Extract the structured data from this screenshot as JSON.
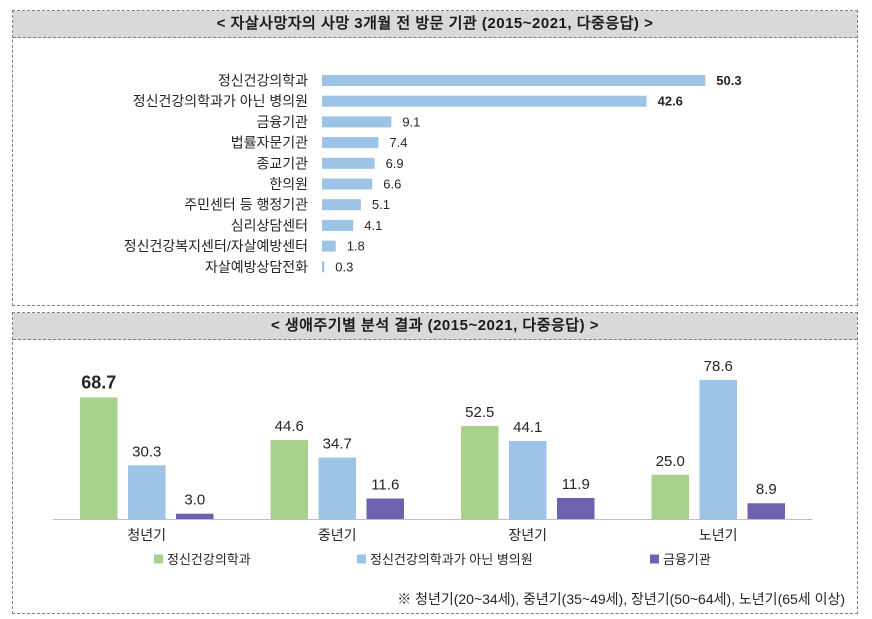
{
  "chart_data": [
    {
      "type": "bar",
      "orientation": "horizontal",
      "title": "< 자살사망자의 사망 3개월 전 방문 기관 (2015~2021, 다중응답) >",
      "categories": [
        "정신건강의학과",
        "정신건강의학과가 아닌 병의원",
        "금융기관",
        "법률자문기관",
        "종교기관",
        "한의원",
        "주민센터 등 행정기관",
        "심리상담센터",
        "정신건강복지센터/자살예방센터",
        "자살예방상담전화"
      ],
      "values": [
        50.3,
        42.6,
        9.1,
        7.4,
        6.9,
        6.6,
        5.1,
        4.1,
        1.8,
        0.3
      ],
      "color": "#9dc3e6",
      "grid": false
    },
    {
      "type": "bar",
      "title": "< 생애주기별 분석 결과 (2015~2021, 다중응답) >",
      "categories": [
        "청년기",
        "중년기",
        "장년기",
        "노년기"
      ],
      "series": [
        {
          "name": "정신건강의학과",
          "color": "#a9d18e",
          "values": [
            68.7,
            44.6,
            52.5,
            25.0
          ]
        },
        {
          "name": "정신건강의학과가 아닌 병의원",
          "color": "#9dc3e6",
          "values": [
            30.3,
            34.7,
            44.1,
            78.6
          ]
        },
        {
          "name": "금융기관",
          "color": "#7060b0",
          "values": [
            3.0,
            11.6,
            11.9,
            8.9
          ]
        }
      ],
      "grid": false,
      "legend": "bottom",
      "footnote": "※ 청년기(20~34세), 중년기(35~49세), 장년기(50~64세), 노년기(65세 이상)"
    }
  ]
}
